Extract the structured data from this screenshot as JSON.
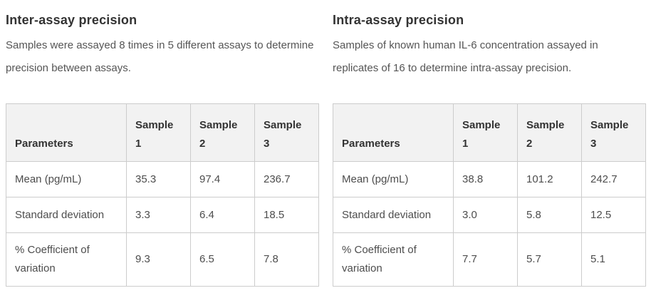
{
  "colors": {
    "heading_text": "#333333",
    "body_text": "#555555",
    "table_text": "#4d4d4d",
    "table_border": "#cccccc",
    "table_header_bg": "#f2f2f2",
    "page_bg": "#ffffff"
  },
  "sections": [
    {
      "title": "Inter-assay precision",
      "description": "Samples were assayed 8 times in 5 different assays to determine precision between assays.",
      "table": {
        "headers": [
          "Parameters",
          "Sample 1",
          "Sample 2",
          "Sample 3"
        ],
        "rows": [
          {
            "label": "Mean (pg/mL)",
            "values": [
              "35.3",
              "97.4",
              "236.7"
            ]
          },
          {
            "label": "Standard deviation",
            "values": [
              "3.3",
              "6.4",
              "18.5"
            ]
          },
          {
            "label": "% Coefficient of variation",
            "values": [
              "9.3",
              "6.5",
              "7.8"
            ]
          }
        ]
      }
    },
    {
      "title": "Intra-assay precision",
      "description": "Samples of known human IL-6 concentration assayed in replicates of 16 to determine intra-assay precision.",
      "table": {
        "headers": [
          "Parameters",
          "Sample 1",
          "Sample 2",
          "Sample 3"
        ],
        "rows": [
          {
            "label": "Mean (pg/mL)",
            "values": [
              "38.8",
              "101.2",
              "242.7"
            ]
          },
          {
            "label": "Standard deviation",
            "values": [
              "3.0",
              "5.8",
              "12.5"
            ]
          },
          {
            "label": "% Coefficient of variation",
            "values": [
              "7.7",
              "5.7",
              "5.1"
            ]
          }
        ]
      }
    }
  ]
}
